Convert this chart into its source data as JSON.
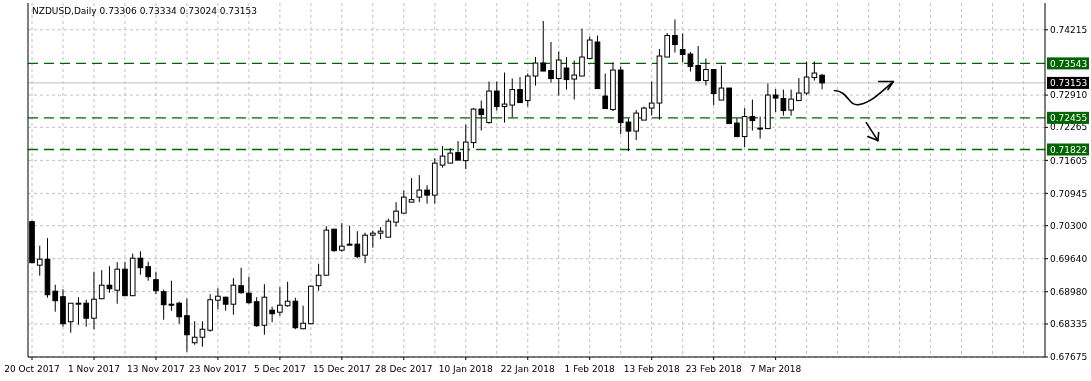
{
  "chart_data": {
    "type": "candlestick",
    "title": "NZDUSD,Daily  0.73306 0.73334 0.73024 0.73153",
    "categories": [
      "20 Oct 2017",
      null,
      null,
      null,
      null,
      null,
      null,
      null,
      "1 Nov 2017",
      null,
      null,
      null,
      null,
      null,
      null,
      null,
      "13 Nov 2017",
      null,
      null,
      null,
      null,
      null,
      null,
      null,
      "23 Nov 2017",
      null,
      null,
      null,
      null,
      null,
      null,
      null,
      "5 Dec 2017",
      null,
      null,
      null,
      null,
      null,
      null,
      null,
      "15 Dec 2017",
      null,
      null,
      null,
      null,
      null,
      null,
      null,
      "28 Dec 2017",
      null,
      null,
      null,
      null,
      null,
      null,
      null,
      "10 Jan 2018",
      null,
      null,
      null,
      null,
      null,
      null,
      null,
      "22 Jan 2018",
      null,
      null,
      null,
      null,
      null,
      null,
      null,
      "1 Feb 2018",
      null,
      null,
      null,
      null,
      null,
      null,
      null,
      "13 Feb 2018",
      null,
      null,
      null,
      null,
      null,
      null,
      null,
      "23 Feb 2018",
      null,
      null,
      null,
      null,
      null,
      null,
      null,
      "7 Mar 2018",
      null,
      null,
      null,
      null,
      null,
      null,
      null,
      null,
      null,
      null,
      null,
      null,
      null,
      null,
      null,
      null,
      null,
      null,
      null,
      null,
      null,
      null,
      null,
      null,
      null,
      null,
      null,
      null,
      null,
      null,
      null,
      null,
      null,
      null
    ],
    "ohlc": [
      [
        0.7038,
        0.704,
        0.6955,
        0.6956
      ],
      [
        0.6951,
        0.699,
        0.693,
        0.6963
      ],
      [
        0.6963,
        0.7005,
        0.6886,
        0.6892
      ],
      [
        0.6899,
        0.6912,
        0.6858,
        0.688
      ],
      [
        0.6888,
        0.6903,
        0.6828,
        0.6834
      ],
      [
        0.6838,
        0.6875,
        0.6816,
        0.6875
      ],
      [
        0.6874,
        0.6887,
        0.6832,
        0.6875
      ],
      [
        0.6875,
        0.6882,
        0.6828,
        0.6845
      ],
      [
        0.6845,
        0.6938,
        0.6823,
        0.6883
      ],
      [
        0.6884,
        0.6941,
        0.6883,
        0.6911
      ],
      [
        0.6911,
        0.6949,
        0.6896,
        0.6904
      ],
      [
        0.6901,
        0.6957,
        0.6874,
        0.6943
      ],
      [
        0.6943,
        0.6957,
        0.689,
        0.689
      ],
      [
        0.689,
        0.6974,
        0.689,
        0.6965
      ],
      [
        0.6965,
        0.6979,
        0.6932,
        0.6946
      ],
      [
        0.6948,
        0.6958,
        0.692,
        0.6928
      ],
      [
        0.6922,
        0.6938,
        0.6893,
        0.69
      ],
      [
        0.6898,
        0.6902,
        0.6842,
        0.6872
      ],
      [
        0.6873,
        0.692,
        0.686,
        0.6872
      ],
      [
        0.6875,
        0.6878,
        0.6834,
        0.6848
      ],
      [
        0.685,
        0.6884,
        0.6778,
        0.6812
      ],
      [
        0.6796,
        0.6839,
        0.6792,
        0.6807
      ],
      [
        0.6807,
        0.6839,
        0.6788,
        0.6823
      ],
      [
        0.6821,
        0.6893,
        0.6818,
        0.6882
      ],
      [
        0.6881,
        0.6905,
        0.6863,
        0.6889
      ],
      [
        0.6887,
        0.6888,
        0.686,
        0.6873
      ],
      [
        0.6873,
        0.6925,
        0.6852,
        0.6911
      ],
      [
        0.691,
        0.6946,
        0.6894,
        0.6896
      ],
      [
        0.6895,
        0.6928,
        0.6874,
        0.6876
      ],
      [
        0.6878,
        0.6887,
        0.6828,
        0.683
      ],
      [
        0.6831,
        0.6913,
        0.6812,
        0.6887
      ],
      [
        0.6861,
        0.6868,
        0.6837,
        0.6854
      ],
      [
        0.6857,
        0.6907,
        0.685,
        0.6871
      ],
      [
        0.687,
        0.6918,
        0.6868,
        0.6879
      ],
      [
        0.6879,
        0.6886,
        0.6823,
        0.6826
      ],
      [
        0.6824,
        0.687,
        0.6823,
        0.6835
      ],
      [
        0.6834,
        0.691,
        0.6833,
        0.6909
      ],
      [
        0.691,
        0.6954,
        0.69,
        0.6931
      ],
      [
        0.6931,
        0.7029,
        0.6931,
        0.7021
      ],
      [
        0.7023,
        0.7023,
        0.6978,
        0.698
      ],
      [
        0.6981,
        0.7035,
        0.6978,
        0.6989
      ],
      [
        0.6993,
        0.703,
        0.699,
        0.6993
      ],
      [
        0.6993,
        0.7019,
        0.6965,
        0.6968
      ],
      [
        0.6971,
        0.7016,
        0.6955,
        0.7011
      ],
      [
        0.7011,
        0.702,
        0.6986,
        0.7015
      ],
      [
        0.7015,
        0.7027,
        0.7003,
        0.7019
      ],
      [
        0.7007,
        0.7044,
        0.7007,
        0.7039
      ],
      [
        0.7037,
        0.7077,
        0.7028,
        0.7059
      ],
      [
        0.7055,
        0.71,
        0.7055,
        0.7087
      ],
      [
        0.7077,
        0.7125,
        0.7077,
        0.7082
      ],
      [
        0.7087,
        0.7131,
        0.7077,
        0.7101
      ],
      [
        0.7101,
        0.7111,
        0.7074,
        0.7091
      ],
      [
        0.7091,
        0.7165,
        0.7074,
        0.7155
      ],
      [
        0.7151,
        0.7189,
        0.7146,
        0.7169
      ],
      [
        0.7155,
        0.7185,
        0.7155,
        0.7175
      ],
      [
        0.7176,
        0.7199,
        0.7161,
        0.7161
      ],
      [
        0.716,
        0.7232,
        0.7143,
        0.7197
      ],
      [
        0.7196,
        0.7265,
        0.7185,
        0.7263
      ],
      [
        0.7263,
        0.728,
        0.722,
        0.7252
      ],
      [
        0.7236,
        0.7318,
        0.7234,
        0.7299
      ],
      [
        0.7299,
        0.7318,
        0.726,
        0.7268
      ],
      [
        0.7268,
        0.7336,
        0.7236,
        0.7273
      ],
      [
        0.7271,
        0.7324,
        0.7247,
        0.7302
      ],
      [
        0.7302,
        0.7327,
        0.7276,
        0.7276
      ],
      [
        0.728,
        0.7334,
        0.7268,
        0.7329
      ],
      [
        0.7329,
        0.7367,
        0.731,
        0.7355
      ],
      [
        0.7355,
        0.7439,
        0.7339,
        0.7339
      ],
      [
        0.734,
        0.7397,
        0.7316,
        0.7324
      ],
      [
        0.7324,
        0.7378,
        0.729,
        0.7361
      ],
      [
        0.7345,
        0.7367,
        0.7302,
        0.7322
      ],
      [
        0.7323,
        0.736,
        0.7282,
        0.7331
      ],
      [
        0.7329,
        0.7424,
        0.7329,
        0.7367
      ],
      [
        0.7364,
        0.7408,
        0.7364,
        0.7401
      ],
      [
        0.7397,
        0.741,
        0.7304,
        0.7304
      ],
      [
        0.7289,
        0.7334,
        0.7264,
        0.7264
      ],
      [
        0.7262,
        0.7356,
        0.7259,
        0.7341
      ],
      [
        0.7341,
        0.7348,
        0.7213,
        0.7236
      ],
      [
        0.7237,
        0.7244,
        0.7179,
        0.7219
      ],
      [
        0.7219,
        0.7261,
        0.7201,
        0.7255
      ],
      [
        0.7241,
        0.7268,
        0.7241,
        0.7265
      ],
      [
        0.7265,
        0.7318,
        0.725,
        0.7275
      ],
      [
        0.7275,
        0.7383,
        0.7242,
        0.7369
      ],
      [
        0.7367,
        0.7415,
        0.7367,
        0.741
      ],
      [
        0.741,
        0.7442,
        0.7376,
        0.7392
      ],
      [
        0.7382,
        0.7414,
        0.7356,
        0.7372
      ],
      [
        0.7373,
        0.7377,
        0.7338,
        0.7348
      ],
      [
        0.735,
        0.7389,
        0.7318,
        0.732
      ],
      [
        0.732,
        0.7364,
        0.731,
        0.7342
      ],
      [
        0.7342,
        0.7342,
        0.7271,
        0.7294
      ],
      [
        0.7281,
        0.735,
        0.7281,
        0.7305
      ],
      [
        0.7305,
        0.7305,
        0.7234,
        0.7234
      ],
      [
        0.7235,
        0.7245,
        0.7208,
        0.7208
      ],
      [
        0.7208,
        0.7265,
        0.7187,
        0.7248
      ],
      [
        0.7248,
        0.7282,
        0.722,
        0.724
      ],
      [
        0.7225,
        0.7248,
        0.7204,
        0.7224
      ],
      [
        0.7224,
        0.7314,
        0.7223,
        0.7291
      ],
      [
        0.7291,
        0.7303,
        0.7257,
        0.7285
      ],
      [
        0.7284,
        0.7302,
        0.725,
        0.726
      ],
      [
        0.7261,
        0.7302,
        0.725,
        0.7283
      ],
      [
        0.728,
        0.7325,
        0.728,
        0.7295
      ],
      [
        0.7295,
        0.7358,
        0.7291,
        0.7327
      ],
      [
        0.7326,
        0.7358,
        0.732,
        0.7335
      ],
      [
        0.73306,
        0.73334,
        0.73024,
        0.73153
      ],
      null,
      null,
      null,
      null,
      null,
      null,
      null,
      null,
      null,
      null,
      null,
      null,
      null,
      null,
      null,
      null,
      null,
      null,
      null,
      null,
      null,
      null,
      null,
      null,
      null,
      null,
      null,
      null
    ],
    "color": "#000000",
    "ylim": [
      0.67675,
      0.7475
    ],
    "yticks": [
      0.74215,
      {
        "value": 0.7291,
        "label": "0.72910"
      },
      0.72265,
      0.71605,
      0.70945,
      {
        "value": 0.703,
        "label": "0.70300"
      },
      {
        "value": 0.6964,
        "label": "0.69640"
      },
      {
        "value": 0.6898,
        "label": "0.68980"
      },
      0.68335,
      0.67675
    ],
    "grid": true,
    "ref_lines": [
      {
        "axis": "y",
        "value": 0.73543,
        "label": "0.73543",
        "color": "#006400",
        "line_style": "dashed"
      },
      {
        "axis": "y",
        "value": 0.73153,
        "label": "0.73153",
        "color": "#c0c0c0",
        "line_style": "solid"
      },
      {
        "axis": "y",
        "value": 0.72455,
        "label": "0.72455",
        "color": "#006400",
        "line_style": "dashed"
      },
      {
        "axis": "y",
        "value": 0.71822,
        "label": "0.71822",
        "color": "#006400",
        "line_style": "dashed"
      }
    ]
  }
}
